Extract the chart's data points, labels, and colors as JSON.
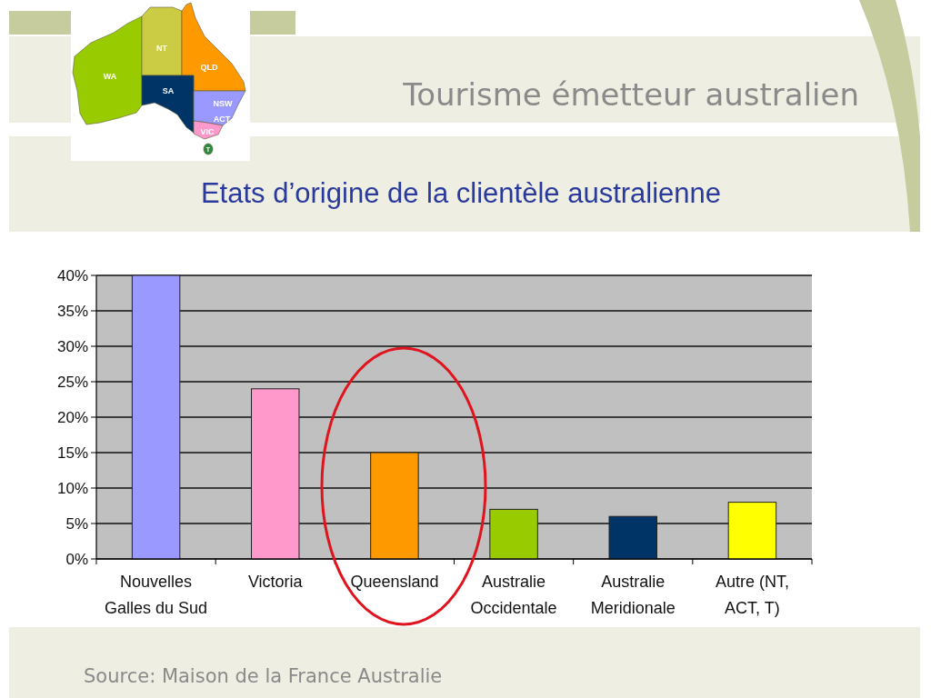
{
  "chart_data": {
    "type": "bar",
    "title": "Tourisme émetteur australien",
    "subtitle": "Etats d’origine de la clientèle australienne",
    "categories": [
      "Nouvelles\nGalles du Sud",
      "Victoria",
      "Queensland",
      "Australie\nOccidentale",
      "Australie\nMeridionale",
      "Autre (NT,\nACT, T)"
    ],
    "values": [
      40,
      24,
      15,
      7,
      6,
      8
    ],
    "colors": [
      "#9999ff",
      "#ff99cc",
      "#ff9900",
      "#99cc00",
      "#003366",
      "#ffff00"
    ],
    "ylim": [
      0,
      40
    ],
    "yticks": [
      {
        "value": 0,
        "label": "0%"
      },
      {
        "value": 5,
        "label": "5%"
      },
      {
        "value": 10,
        "label": "10%"
      },
      {
        "value": 15,
        "label": "15%"
      },
      {
        "value": 20,
        "label": "20%"
      },
      {
        "value": 25,
        "label": "25%"
      },
      {
        "value": 30,
        "label": "30%"
      },
      {
        "value": 35,
        "label": "35%"
      },
      {
        "value": 40,
        "label": "40%"
      }
    ],
    "grid": "y",
    "annotations": [
      "Source: Maison de la France Australie",
      "WA",
      "NT",
      "QLD",
      "SA",
      "NSW",
      "ACT",
      "VIC",
      "T"
    ]
  }
}
